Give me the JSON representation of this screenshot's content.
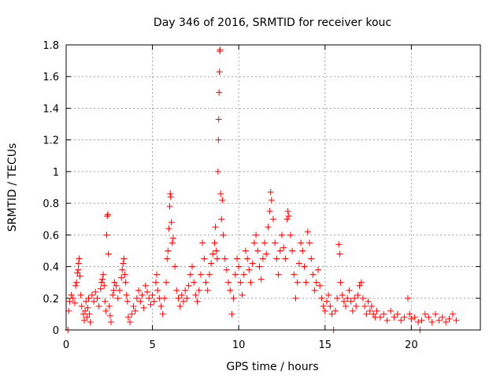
{
  "chart_data": {
    "type": "scatter",
    "title": "Day 346 of 2016, SRMTID for receiver kouc",
    "xlabel": "GPS time / hours",
    "ylabel": "SRMTID / TECUs",
    "xlim": [
      0,
      24
    ],
    "ylim": [
      0,
      1.8
    ],
    "grid": true,
    "marker": "+",
    "color": "#ff0000",
    "x_ticks": [
      0,
      5,
      10,
      15,
      20
    ],
    "x_tick_labels": [
      "0",
      "5",
      "10",
      "15",
      "20"
    ],
    "y_ticks": [
      0,
      0.2,
      0.4,
      0.6,
      0.8,
      1,
      1.2,
      1.4,
      1.6,
      1.8
    ],
    "y_tick_labels": [
      "0",
      "0.2",
      "0.4",
      "0.6",
      "0.8",
      "1",
      "1.2",
      "1.4",
      "1.6",
      "1.8"
    ],
    "series": [
      {
        "name": "SRMTID",
        "points": [
          [
            0.1,
            0.0
          ],
          [
            0.15,
            0.12
          ],
          [
            0.2,
            0.18
          ],
          [
            0.3,
            0.22
          ],
          [
            0.4,
            0.2
          ],
          [
            0.5,
            0.17
          ],
          [
            0.55,
            0.28
          ],
          [
            0.6,
            0.3
          ],
          [
            0.65,
            0.36
          ],
          [
            0.7,
            0.38
          ],
          [
            0.72,
            0.42
          ],
          [
            0.75,
            0.45
          ],
          [
            0.8,
            0.34
          ],
          [
            0.85,
            0.22
          ],
          [
            0.9,
            0.15
          ],
          [
            1.0,
            0.1
          ],
          [
            1.05,
            0.06
          ],
          [
            1.1,
            0.12
          ],
          [
            1.15,
            0.18
          ],
          [
            1.2,
            0.08
          ],
          [
            1.25,
            0.14
          ],
          [
            1.3,
            0.2
          ],
          [
            1.35,
            0.1
          ],
          [
            1.4,
            0.05
          ],
          [
            1.5,
            0.22
          ],
          [
            1.6,
            0.18
          ],
          [
            1.7,
            0.24
          ],
          [
            1.8,
            0.2
          ],
          [
            1.9,
            0.15
          ],
          [
            2.0,
            0.26
          ],
          [
            2.05,
            0.3
          ],
          [
            2.1,
            0.32
          ],
          [
            2.15,
            0.35
          ],
          [
            2.2,
            0.28
          ],
          [
            2.25,
            0.18
          ],
          [
            2.3,
            0.12
          ],
          [
            2.35,
            0.6
          ],
          [
            2.38,
            0.72
          ],
          [
            2.42,
            0.73
          ],
          [
            2.45,
            0.48
          ],
          [
            2.5,
            0.15
          ],
          [
            2.55,
            0.09
          ],
          [
            2.6,
            0.05
          ],
          [
            2.7,
            0.22
          ],
          [
            2.75,
            0.25
          ],
          [
            2.8,
            0.3
          ],
          [
            2.9,
            0.28
          ],
          [
            3.0,
            0.2
          ],
          [
            3.1,
            0.25
          ],
          [
            3.2,
            0.33
          ],
          [
            3.25,
            0.38
          ],
          [
            3.3,
            0.42
          ],
          [
            3.35,
            0.45
          ],
          [
            3.4,
            0.35
          ],
          [
            3.45,
            0.3
          ],
          [
            3.5,
            0.22
          ],
          [
            3.55,
            0.18
          ],
          [
            3.6,
            0.08
          ],
          [
            3.7,
            0.05
          ],
          [
            3.8,
            0.1
          ],
          [
            3.9,
            0.15
          ],
          [
            4.0,
            0.12
          ],
          [
            4.1,
            0.2
          ],
          [
            4.2,
            0.25
          ],
          [
            4.3,
            0.18
          ],
          [
            4.4,
            0.22
          ],
          [
            4.5,
            0.14
          ],
          [
            4.6,
            0.28
          ],
          [
            4.7,
            0.24
          ],
          [
            4.8,
            0.2
          ],
          [
            4.9,
            0.16
          ],
          [
            5.0,
            0.22
          ],
          [
            5.1,
            0.18
          ],
          [
            5.2,
            0.3
          ],
          [
            5.25,
            0.35
          ],
          [
            5.3,
            0.25
          ],
          [
            5.4,
            0.2
          ],
          [
            5.5,
            0.15
          ],
          [
            5.6,
            0.1
          ],
          [
            5.7,
            0.2
          ],
          [
            5.8,
            0.3
          ],
          [
            5.85,
            0.45
          ],
          [
            5.9,
            0.5
          ],
          [
            5.95,
            0.64
          ],
          [
            6.0,
            0.78
          ],
          [
            6.03,
            0.86
          ],
          [
            6.06,
            0.84
          ],
          [
            6.1,
            0.68
          ],
          [
            6.15,
            0.55
          ],
          [
            6.2,
            0.58
          ],
          [
            6.3,
            0.4
          ],
          [
            6.4,
            0.25
          ],
          [
            6.5,
            0.2
          ],
          [
            6.6,
            0.15
          ],
          [
            6.7,
            0.22
          ],
          [
            6.8,
            0.18
          ],
          [
            6.9,
            0.25
          ],
          [
            7.0,
            0.2
          ],
          [
            7.1,
            0.28
          ],
          [
            7.2,
            0.35
          ],
          [
            7.3,
            0.4
          ],
          [
            7.4,
            0.3
          ],
          [
            7.5,
            0.22
          ],
          [
            7.6,
            0.18
          ],
          [
            7.7,
            0.25
          ],
          [
            7.8,
            0.35
          ],
          [
            7.9,
            0.55
          ],
          [
            8.0,
            0.45
          ],
          [
            8.1,
            0.3
          ],
          [
            8.2,
            0.25
          ],
          [
            8.3,
            0.35
          ],
          [
            8.4,
            0.42
          ],
          [
            8.5,
            0.48
          ],
          [
            8.6,
            0.55
          ],
          [
            8.65,
            0.65
          ],
          [
            8.7,
            0.5
          ],
          [
            8.75,
            0.45
          ],
          [
            8.8,
            1.0
          ],
          [
            8.82,
            1.2
          ],
          [
            8.84,
            1.33
          ],
          [
            8.86,
            1.5
          ],
          [
            8.88,
            1.63
          ],
          [
            8.9,
            1.76
          ],
          [
            8.92,
            1.77
          ],
          [
            8.95,
            0.86
          ],
          [
            9.0,
            0.7
          ],
          [
            9.05,
            0.82
          ],
          [
            9.1,
            0.6
          ],
          [
            9.2,
            0.45
          ],
          [
            9.3,
            0.38
          ],
          [
            9.4,
            0.3
          ],
          [
            9.5,
            0.25
          ],
          [
            9.6,
            0.1
          ],
          [
            9.7,
            0.2
          ],
          [
            9.8,
            0.35
          ],
          [
            9.9,
            0.45
          ],
          [
            10.0,
            0.4
          ],
          [
            10.1,
            0.3
          ],
          [
            10.2,
            0.22
          ],
          [
            10.3,
            0.35
          ],
          [
            10.4,
            0.5
          ],
          [
            10.5,
            0.45
          ],
          [
            10.6,
            0.38
          ],
          [
            10.7,
            0.3
          ],
          [
            10.8,
            0.42
          ],
          [
            10.9,
            0.55
          ],
          [
            11.0,
            0.6
          ],
          [
            11.1,
            0.5
          ],
          [
            11.2,
            0.4
          ],
          [
            11.3,
            0.32
          ],
          [
            11.4,
            0.45
          ],
          [
            11.5,
            0.55
          ],
          [
            11.6,
            0.48
          ],
          [
            11.7,
            0.65
          ],
          [
            11.8,
            0.75
          ],
          [
            11.85,
            0.87
          ],
          [
            11.9,
            0.82
          ],
          [
            12.0,
            0.7
          ],
          [
            12.1,
            0.55
          ],
          [
            12.2,
            0.45
          ],
          [
            12.3,
            0.35
          ],
          [
            12.4,
            0.5
          ],
          [
            12.5,
            0.6
          ],
          [
            12.6,
            0.52
          ],
          [
            12.7,
            0.45
          ],
          [
            12.8,
            0.7
          ],
          [
            12.85,
            0.75
          ],
          [
            12.9,
            0.72
          ],
          [
            13.0,
            0.6
          ],
          [
            13.1,
            0.5
          ],
          [
            13.2,
            0.35
          ],
          [
            13.3,
            0.2
          ],
          [
            13.4,
            0.3
          ],
          [
            13.5,
            0.42
          ],
          [
            13.6,
            0.55
          ],
          [
            13.7,
            0.5
          ],
          [
            13.8,
            0.4
          ],
          [
            13.9,
            0.3
          ],
          [
            14.0,
            0.62
          ],
          [
            14.1,
            0.55
          ],
          [
            14.2,
            0.45
          ],
          [
            14.3,
            0.35
          ],
          [
            14.4,
            0.25
          ],
          [
            14.5,
            0.3
          ],
          [
            14.6,
            0.38
          ],
          [
            14.7,
            0.28
          ],
          [
            14.8,
            0.2
          ],
          [
            14.9,
            0.15
          ],
          [
            15.0,
            0.12
          ],
          [
            15.1,
            0.18
          ],
          [
            15.2,
            0.22
          ],
          [
            15.3,
            0.15
          ],
          [
            15.4,
            0.1
          ],
          [
            15.5,
            0.0
          ],
          [
            15.6,
            0.12
          ],
          [
            15.7,
            0.2
          ],
          [
            15.8,
            0.54
          ],
          [
            15.85,
            0.48
          ],
          [
            15.9,
            0.3
          ],
          [
            16.0,
            0.22
          ],
          [
            16.1,
            0.18
          ],
          [
            16.2,
            0.15
          ],
          [
            16.3,
            0.2
          ],
          [
            16.4,
            0.25
          ],
          [
            16.5,
            0.18
          ],
          [
            16.6,
            0.12
          ],
          [
            16.7,
            0.2
          ],
          [
            16.8,
            0.15
          ],
          [
            16.9,
            0.22
          ],
          [
            17.0,
            0.28
          ],
          [
            17.1,
            0.3
          ],
          [
            17.2,
            0.2
          ],
          [
            17.3,
            0.15
          ],
          [
            17.4,
            0.1
          ],
          [
            17.5,
            0.18
          ],
          [
            17.6,
            0.12
          ],
          [
            17.7,
            0.15
          ],
          [
            17.8,
            0.1
          ],
          [
            17.9,
            0.08
          ],
          [
            18.0,
            0.12
          ],
          [
            18.2,
            0.08
          ],
          [
            18.4,
            0.1
          ],
          [
            18.6,
            0.06
          ],
          [
            18.8,
            0.12
          ],
          [
            19.0,
            0.08
          ],
          [
            19.2,
            0.1
          ],
          [
            19.4,
            0.06
          ],
          [
            19.6,
            0.08
          ],
          [
            19.8,
            0.2
          ],
          [
            19.9,
            0.1
          ],
          [
            20.0,
            0.07
          ],
          [
            20.2,
            0.08
          ],
          [
            20.4,
            0.05
          ],
          [
            20.5,
            0.0
          ],
          [
            20.6,
            0.06
          ],
          [
            20.8,
            0.1
          ],
          [
            21.0,
            0.08
          ],
          [
            21.2,
            0.05
          ],
          [
            21.4,
            0.1
          ],
          [
            21.6,
            0.06
          ],
          [
            21.8,
            0.08
          ],
          [
            22.0,
            0.05
          ],
          [
            22.2,
            0.07
          ],
          [
            22.4,
            0.1
          ],
          [
            22.6,
            0.06
          ]
        ]
      }
    ]
  }
}
